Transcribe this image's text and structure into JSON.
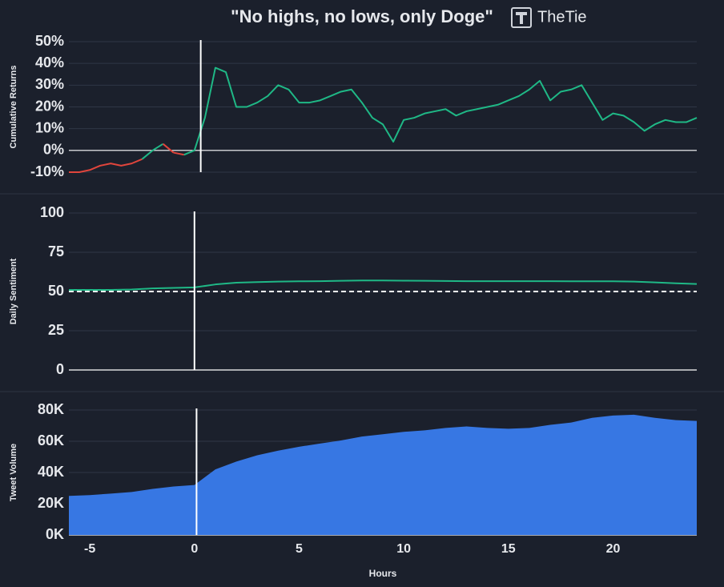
{
  "title": "\"No highs, no lows, only Doge\"",
  "logo": "TheTie",
  "chart_data": [
    {
      "type": "line",
      "ylabel": "Cumulative Returns",
      "color": "#1fb886",
      "negative_color": "#e0453c",
      "xlim": [
        -6,
        24
      ],
      "ylim": [
        -10,
        50
      ],
      "yticks": [
        {
          "value": -10,
          "label": "-10%"
        },
        {
          "value": 0,
          "label": "0%"
        },
        {
          "value": 10,
          "label": "10%"
        },
        {
          "value": 20,
          "label": "20%"
        },
        {
          "value": 30,
          "label": "30%"
        },
        {
          "value": 40,
          "label": "40%"
        },
        {
          "value": 50,
          "label": "50%"
        }
      ],
      "vline": 0.3,
      "x": [
        -6,
        -5.5,
        -5,
        -4.5,
        -4,
        -3.5,
        -3,
        -2.5,
        -2,
        -1.5,
        -1,
        -0.5,
        0,
        0.5,
        1,
        1.5,
        2,
        2.5,
        3,
        3.5,
        4,
        4.5,
        5,
        5.5,
        6,
        6.5,
        7,
        7.5,
        8,
        8.5,
        9,
        9.5,
        10,
        10.5,
        11,
        11.5,
        12,
        12.5,
        13,
        13.5,
        14,
        14.5,
        15,
        15.5,
        16,
        16.5,
        17,
        17.5,
        18,
        18.5,
        19,
        19.5,
        20,
        20.5,
        21,
        21.5,
        22,
        22.5,
        23,
        23.5,
        24
      ],
      "values": [
        -10,
        -10,
        -9,
        -7,
        -6,
        -7,
        -6,
        -4,
        0,
        3,
        -1,
        -2,
        0,
        15,
        38,
        36,
        20,
        20,
        22,
        25,
        30,
        28,
        22,
        22,
        23,
        25,
        27,
        28,
        22,
        15,
        12,
        4,
        14,
        15,
        17,
        18,
        19,
        16,
        18,
        19,
        20,
        21,
        23,
        25,
        28,
        32,
        23,
        27,
        28,
        30,
        22,
        14,
        17,
        16,
        13,
        9,
        12,
        14,
        13,
        13,
        15
      ]
    },
    {
      "type": "line",
      "ylabel": "Daily Sentiment",
      "color": "#1fb886",
      "xlim": [
        -6,
        24
      ],
      "ylim": [
        0,
        100
      ],
      "yticks": [
        0,
        25,
        50,
        75,
        100
      ],
      "hline": 50,
      "vline": 0,
      "x": [
        -6,
        -5,
        -4,
        -3,
        -2,
        -1,
        0,
        1,
        2,
        3,
        4,
        5,
        6,
        7,
        8,
        9,
        10,
        11,
        12,
        13,
        14,
        15,
        16,
        17,
        18,
        19,
        20,
        21,
        22,
        23,
        24
      ],
      "values": [
        51,
        51,
        51,
        51.3,
        52,
        52.3,
        52.6,
        54.5,
        55.6,
        56,
        56.3,
        56.5,
        56.6,
        56.8,
        57,
        57,
        56.9,
        56.8,
        56.7,
        56.6,
        56.6,
        56.6,
        56.6,
        56.6,
        56.5,
        56.5,
        56.5,
        56.3,
        55.8,
        55.2,
        54.8
      ]
    },
    {
      "type": "area",
      "ylabel": "Tweet Volume",
      "xlabel": "Hours",
      "color": "#3777e3",
      "xlim": [
        -6,
        24
      ],
      "ylim": [
        0,
        80000
      ],
      "yticks": [
        {
          "value": 0,
          "label": "0K"
        },
        {
          "value": 20000,
          "label": "20K"
        },
        {
          "value": 40000,
          "label": "40K"
        },
        {
          "value": 60000,
          "label": "60K"
        },
        {
          "value": 80000,
          "label": "80K"
        }
      ],
      "xticks": [
        -5,
        0,
        5,
        10,
        15,
        20
      ],
      "vline": 0.1,
      "x": [
        -6,
        -5,
        -4,
        -3,
        -2,
        -1,
        0,
        1,
        2,
        3,
        4,
        5,
        6,
        7,
        8,
        9,
        10,
        11,
        12,
        13,
        14,
        15,
        16,
        17,
        18,
        19,
        20,
        21,
        22,
        23,
        24
      ],
      "values": [
        25000,
        25500,
        26500,
        27500,
        29500,
        31000,
        32000,
        42000,
        47000,
        51000,
        54000,
        56500,
        58500,
        60500,
        63000,
        64500,
        66000,
        67000,
        68500,
        69500,
        68500,
        68000,
        68500,
        70500,
        72000,
        75000,
        76500,
        77000,
        75000,
        73500,
        73000
      ]
    }
  ]
}
